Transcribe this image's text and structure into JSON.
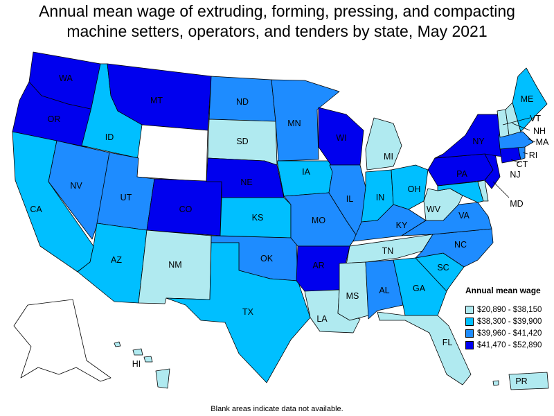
{
  "title_line1": "Annual mean wage of extruding, forming, pressing, and compacting",
  "title_line2": "machine setters, operators, and tenders by state, May 2021",
  "legend": {
    "title": "Annual mean wage",
    "items": [
      {
        "label": "$20,890 - $38,150",
        "color": "#b0eaf0"
      },
      {
        "label": "$38,300 - $39,900",
        "color": "#00bfff"
      },
      {
        "label": "$39,960 - $41,420",
        "color": "#1e8cff"
      },
      {
        "label": "$41,470 - $52,890",
        "color": "#0000ee"
      }
    ]
  },
  "no_data_color": "#ffffff",
  "footnote": "Blank areas indicate data not available.",
  "states": [
    {
      "code": "WA",
      "tier": 3
    },
    {
      "code": "OR",
      "tier": 3
    },
    {
      "code": "CA",
      "tier": 1
    },
    {
      "code": "ID",
      "tier": 1
    },
    {
      "code": "NV",
      "tier": 2
    },
    {
      "code": "MT",
      "tier": 3
    },
    {
      "code": "WY",
      "tier": null
    },
    {
      "code": "UT",
      "tier": 2
    },
    {
      "code": "AZ",
      "tier": 1
    },
    {
      "code": "CO",
      "tier": 3
    },
    {
      "code": "NM",
      "tier": 0
    },
    {
      "code": "ND",
      "tier": 2
    },
    {
      "code": "SD",
      "tier": 0
    },
    {
      "code": "NE",
      "tier": 3
    },
    {
      "code": "KS",
      "tier": 1
    },
    {
      "code": "OK",
      "tier": 2
    },
    {
      "code": "TX",
      "tier": 1
    },
    {
      "code": "MN",
      "tier": 2
    },
    {
      "code": "IA",
      "tier": 1
    },
    {
      "code": "MO",
      "tier": 2
    },
    {
      "code": "AR",
      "tier": 3
    },
    {
      "code": "LA",
      "tier": 0
    },
    {
      "code": "WI",
      "tier": 3
    },
    {
      "code": "IL",
      "tier": 2
    },
    {
      "code": "MI",
      "tier": 0
    },
    {
      "code": "IN",
      "tier": 1
    },
    {
      "code": "OH",
      "tier": 1
    },
    {
      "code": "KY",
      "tier": 2
    },
    {
      "code": "TN",
      "tier": 0
    },
    {
      "code": "MS",
      "tier": 0
    },
    {
      "code": "AL",
      "tier": 2
    },
    {
      "code": "GA",
      "tier": 1
    },
    {
      "code": "FL",
      "tier": 0
    },
    {
      "code": "SC",
      "tier": 1
    },
    {
      "code": "NC",
      "tier": 2
    },
    {
      "code": "VA",
      "tier": 2
    },
    {
      "code": "WV",
      "tier": 0
    },
    {
      "code": "MD",
      "tier": 1
    },
    {
      "code": "DE",
      "tier": 0
    },
    {
      "code": "PA",
      "tier": 3
    },
    {
      "code": "NJ",
      "tier": 3
    },
    {
      "code": "NY",
      "tier": 3
    },
    {
      "code": "CT",
      "tier": 3
    },
    {
      "code": "RI",
      "tier": 2
    },
    {
      "code": "MA",
      "tier": 2
    },
    {
      "code": "VT",
      "tier": 0
    },
    {
      "code": "NH",
      "tier": 0
    },
    {
      "code": "ME",
      "tier": 1
    },
    {
      "code": "AK",
      "tier": null
    },
    {
      "code": "HI",
      "tier": 0
    },
    {
      "code": "PR",
      "tier": 0
    }
  ]
}
